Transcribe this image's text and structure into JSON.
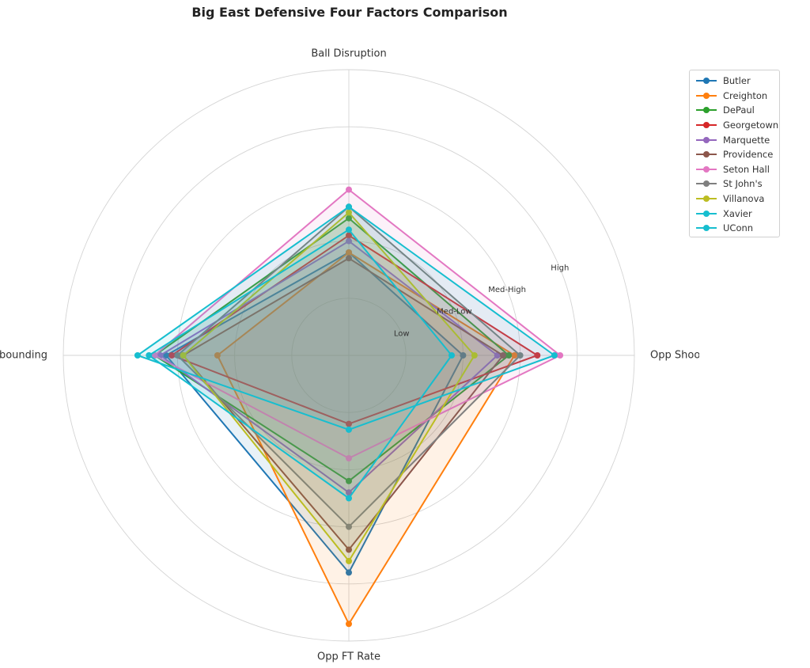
{
  "chart_data": {
    "type": "radar",
    "title": "Big East Defensive Four Factors Comparison",
    "axes": [
      "Ball Disruption",
      "Opp Shooting",
      "Opp FT Rate",
      "Def Rebounding"
    ],
    "ring_labels": [
      "Low",
      "Med-Low",
      "Med-High",
      "High"
    ],
    "range": [
      0,
      5
    ],
    "grid": true,
    "legend_position": "upper-right outside",
    "series": [
      {
        "name": "Butler",
        "color": "#1f77b4",
        "values": [
          1.8,
          2.0,
          3.8,
          3.2
        ]
      },
      {
        "name": "Creighton",
        "color": "#ff7f0e",
        "values": [
          1.8,
          2.9,
          4.7,
          2.3
        ]
      },
      {
        "name": "DePaul",
        "color": "#2ca02c",
        "values": [
          2.4,
          2.8,
          2.2,
          3.4
        ]
      },
      {
        "name": "Georgetown",
        "color": "#d62728",
        "values": [
          2.1,
          3.3,
          1.2,
          3.1
        ]
      },
      {
        "name": "Marquette",
        "color": "#9467bd",
        "values": [
          2.0,
          2.6,
          2.4,
          3.3
        ]
      },
      {
        "name": "Providence",
        "color": "#8c564b",
        "values": [
          1.7,
          2.7,
          3.4,
          2.9
        ]
      },
      {
        "name": "Seton Hall",
        "color": "#e377c2",
        "values": [
          2.9,
          3.7,
          1.8,
          3.4
        ]
      },
      {
        "name": "St John's",
        "color": "#7f7f7f",
        "values": [
          2.6,
          3.0,
          3.0,
          3.0
        ]
      },
      {
        "name": "Villanova",
        "color": "#bcbd22",
        "values": [
          2.5,
          2.2,
          3.6,
          2.9
        ]
      },
      {
        "name": "Xavier",
        "color": "#17becf",
        "values": [
          2.2,
          1.8,
          2.5,
          3.5
        ]
      },
      {
        "name": "UConn",
        "color": "#17becf",
        "values": [
          2.6,
          3.6,
          1.3,
          3.7
        ]
      }
    ]
  }
}
